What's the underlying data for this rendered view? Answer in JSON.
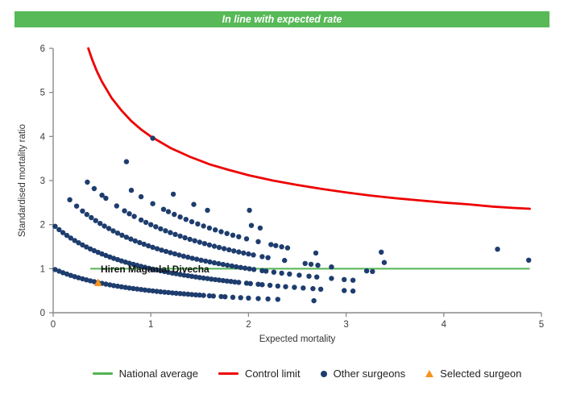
{
  "banner": {
    "text": "In line with expected rate",
    "bg_color": "#57b957",
    "text_color": "#ffffff"
  },
  "chart_data": {
    "type": "scatter",
    "title": "",
    "xlabel": "Expected mortality",
    "ylabel": "Standardised mortality ratio",
    "xlim": [
      0,
      5
    ],
    "ylim": [
      0,
      6
    ],
    "x_ticks": [
      0,
      1,
      2,
      3,
      4,
      5
    ],
    "y_ticks": [
      0,
      1,
      2,
      3,
      4,
      5,
      6
    ],
    "grid": "off",
    "legend_position": "bottom",
    "national_average": {
      "y": 1,
      "x_start": 0.38,
      "x_end": 4.88,
      "color": "#53b453"
    },
    "control_limit": {
      "formula": "y = 1 + 3/sqrt(x)",
      "color": "#ee0000",
      "points": [
        [
          0.36,
          6.0
        ],
        [
          0.4,
          5.74
        ],
        [
          0.45,
          5.47
        ],
        [
          0.5,
          5.24
        ],
        [
          0.6,
          4.87
        ],
        [
          0.7,
          4.59
        ],
        [
          0.8,
          4.35
        ],
        [
          0.9,
          4.16
        ],
        [
          1.0,
          4.0
        ],
        [
          1.2,
          3.74
        ],
        [
          1.4,
          3.54
        ],
        [
          1.6,
          3.37
        ],
        [
          1.8,
          3.24
        ],
        [
          2.0,
          3.12
        ],
        [
          2.25,
          3.0
        ],
        [
          2.5,
          2.9
        ],
        [
          2.75,
          2.81
        ],
        [
          3.0,
          2.73
        ],
        [
          3.25,
          2.66
        ],
        [
          3.5,
          2.6
        ],
        [
          3.75,
          2.55
        ],
        [
          4.0,
          2.5
        ],
        [
          4.25,
          2.46
        ],
        [
          4.5,
          2.41
        ],
        [
          4.7,
          2.38
        ],
        [
          4.88,
          2.36
        ]
      ]
    },
    "other_surgeons": {
      "color": "#1e3d6e",
      "point_radius": 3.2,
      "curve_formula": "y = k/(x+1)  (k = observed deaths band)",
      "bands": [
        {
          "k": 1,
          "dense": [
            0.02,
            1.54,
            0.04
          ],
          "sparse": [
            1.6,
            1.64,
            1.72,
            1.76,
            1.84,
            1.92,
            2.0,
            2.1,
            2.2,
            2.3,
            2.67
          ]
        },
        {
          "k": 2,
          "dense": [
            0.02,
            1.9,
            0.04
          ],
          "sparse": [
            1.98,
            2.02,
            2.1,
            2.14,
            2.22,
            2.3,
            2.38,
            2.47,
            2.56,
            2.66,
            2.74,
            2.98,
            3.07
          ]
        },
        {
          "k": 3,
          "dense": [
            0.3,
            2.06,
            0.045
          ],
          "sparse": [
            0.17,
            0.24,
            2.14,
            2.18,
            2.26,
            2.34,
            2.42,
            2.52,
            2.62,
            2.7,
            2.85,
            2.98,
            3.07
          ]
        },
        {
          "k": 4,
          "dense": [
            0.9,
            2.08,
            0.05
          ],
          "sparse": [
            0.35,
            0.42,
            0.5,
            0.54,
            0.65,
            0.73,
            0.78,
            0.83,
            2.14,
            2.2,
            2.37,
            2.58,
            2.64,
            2.71,
            2.85,
            3.21,
            3.27
          ]
        },
        {
          "k": 5,
          "dense": [
            1.18,
            1.92,
            0.06
          ],
          "sparse": [
            0.8,
            0.9,
            1.02,
            1.13,
            1.98,
            2.1,
            2.23,
            2.28,
            2.34,
            2.4,
            2.69,
            3.39
          ]
        },
        {
          "k": 6,
          "sparse": [
            0.75,
            1.23,
            1.44,
            1.58,
            2.03,
            2.12,
            3.36
          ]
        },
        {
          "k": 7,
          "sparse": [
            2.01,
            4.87
          ]
        },
        {
          "k": 8,
          "sparse": [
            1.02,
            4.55
          ]
        }
      ]
    },
    "selected_surgeon": {
      "x": 0.46,
      "y": 0.68,
      "label": "Hiren Maganlal Divecha",
      "color": "#f6921e"
    }
  },
  "legend": {
    "items": [
      {
        "label": "National average",
        "type": "line",
        "color": "#53b453"
      },
      {
        "label": "Control limit",
        "type": "line",
        "color": "#ee0000"
      },
      {
        "label": "Other surgeons",
        "type": "dot",
        "color": "#1e3d6e"
      },
      {
        "label": "Selected surgeon",
        "type": "triangle",
        "color": "#f6921e"
      }
    ]
  }
}
